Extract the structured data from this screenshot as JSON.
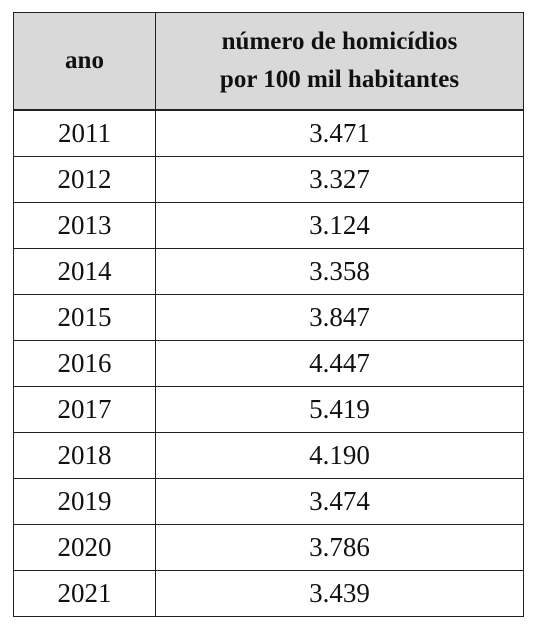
{
  "table": {
    "headers": {
      "year": "ano",
      "value_line1": "número de homicídios",
      "value_line2": "por 100 mil habitantes"
    },
    "rows": [
      {
        "year": "2011",
        "value": "3.471"
      },
      {
        "year": "2012",
        "value": "3.327"
      },
      {
        "year": "2013",
        "value": "3.124"
      },
      {
        "year": "2014",
        "value": "3.358"
      },
      {
        "year": "2015",
        "value": "3.847"
      },
      {
        "year": "2016",
        "value": "4.447"
      },
      {
        "year": "2017",
        "value": "5.419"
      },
      {
        "year": "2018",
        "value": "4.190"
      },
      {
        "year": "2019",
        "value": "3.474"
      },
      {
        "year": "2020",
        "value": "3.786"
      },
      {
        "year": "2021",
        "value": "3.439"
      }
    ]
  },
  "colors": {
    "header_background": "#d9d9d9",
    "border": "#222222",
    "text": "#111111"
  }
}
